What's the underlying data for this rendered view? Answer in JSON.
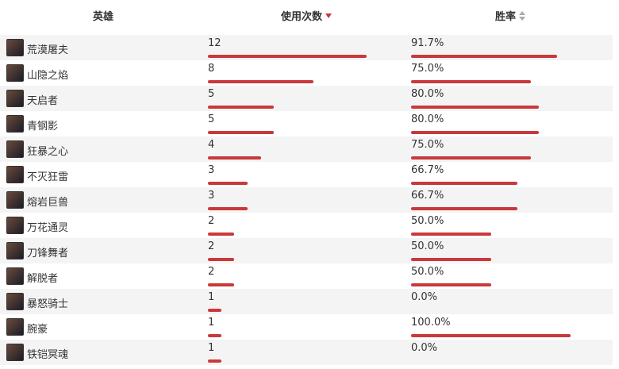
{
  "header": {
    "hero": "英雄",
    "uses": "使用次数",
    "win_rate": "胜率"
  },
  "rows": [
    {
      "hero": "荒漠屠夫",
      "uses": 12,
      "win_rate": 91.7,
      "win_rate_label": "91.7%"
    },
    {
      "hero": "山隐之焰",
      "uses": 8,
      "win_rate": 75.0,
      "win_rate_label": "75.0%"
    },
    {
      "hero": "天启者",
      "uses": 5,
      "win_rate": 80.0,
      "win_rate_label": "80.0%"
    },
    {
      "hero": "青钢影",
      "uses": 5,
      "win_rate": 80.0,
      "win_rate_label": "80.0%"
    },
    {
      "hero": "狂暴之心",
      "uses": 4,
      "win_rate": 75.0,
      "win_rate_label": "75.0%"
    },
    {
      "hero": "不灭狂雷",
      "uses": 3,
      "win_rate": 66.7,
      "win_rate_label": "66.7%"
    },
    {
      "hero": "熔岩巨兽",
      "uses": 3,
      "win_rate": 66.7,
      "win_rate_label": "66.7%"
    },
    {
      "hero": "万花通灵",
      "uses": 2,
      "win_rate": 50.0,
      "win_rate_label": "50.0%"
    },
    {
      "hero": "刀锋舞者",
      "uses": 2,
      "win_rate": 50.0,
      "win_rate_label": "50.0%"
    },
    {
      "hero": "解脱者",
      "uses": 2,
      "win_rate": 50.0,
      "win_rate_label": "50.0%"
    },
    {
      "hero": "暴怒骑士",
      "uses": 1,
      "win_rate": 0.0,
      "win_rate_label": "0.0%"
    },
    {
      "hero": "腕豪",
      "uses": 1,
      "win_rate": 100.0,
      "win_rate_label": "100.0%"
    },
    {
      "hero": "铁铠冥魂",
      "uses": 1,
      "win_rate": 0.0,
      "win_rate_label": "0.0%"
    }
  ]
}
